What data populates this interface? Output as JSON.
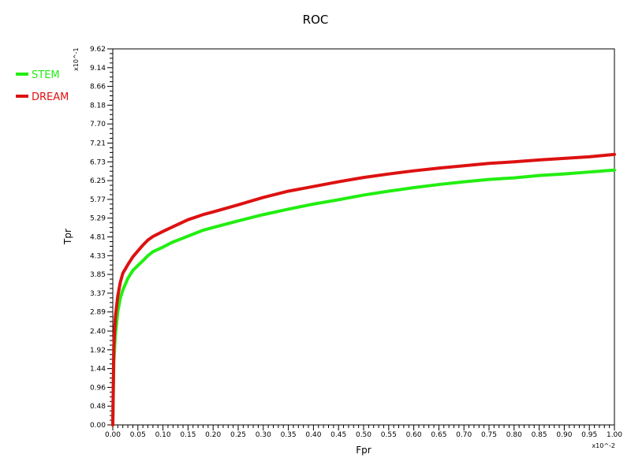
{
  "chart_data": {
    "type": "line",
    "title": "ROC",
    "xlabel": "Fpr",
    "ylabel": "Tpr",
    "x_multiplier_label": "x10^-2",
    "y_multiplier_label": "x10^-1",
    "xlim": [
      0,
      1
    ],
    "ylim": [
      0,
      9.62
    ],
    "x_ticks": [
      "0.00",
      "0.05",
      "0.10",
      "0.15",
      "0.20",
      "0.25",
      "0.30",
      "0.35",
      "0.40",
      "0.45",
      "0.50",
      "0.55",
      "0.60",
      "0.65",
      "0.70",
      "0.75",
      "0.80",
      "0.85",
      "0.90",
      "0.95",
      "1.00"
    ],
    "y_ticks": [
      "0.00",
      "0.48",
      "0.96",
      "1.44",
      "1.92",
      "2.40",
      "2.89",
      "3.37",
      "3.85",
      "4.33",
      "4.81",
      "5.29",
      "5.77",
      "6.25",
      "6.73",
      "7.21",
      "7.70",
      "8.18",
      "8.66",
      "9.14",
      "9.62"
    ],
    "grid": false,
    "legend_position": "left-outside",
    "series": [
      {
        "name": "STEM",
        "color": "#22ee11",
        "points": [
          [
            0.0,
            0.0
          ],
          [
            0.002,
            1.6
          ],
          [
            0.005,
            2.3
          ],
          [
            0.01,
            2.9
          ],
          [
            0.015,
            3.25
          ],
          [
            0.02,
            3.45
          ],
          [
            0.03,
            3.75
          ],
          [
            0.04,
            3.95
          ],
          [
            0.05,
            4.08
          ],
          [
            0.06,
            4.2
          ],
          [
            0.07,
            4.33
          ],
          [
            0.08,
            4.43
          ],
          [
            0.1,
            4.55
          ],
          [
            0.12,
            4.68
          ],
          [
            0.15,
            4.83
          ],
          [
            0.18,
            4.98
          ],
          [
            0.2,
            5.05
          ],
          [
            0.25,
            5.22
          ],
          [
            0.3,
            5.38
          ],
          [
            0.35,
            5.52
          ],
          [
            0.4,
            5.65
          ],
          [
            0.45,
            5.76
          ],
          [
            0.5,
            5.88
          ],
          [
            0.55,
            5.98
          ],
          [
            0.6,
            6.07
          ],
          [
            0.65,
            6.15
          ],
          [
            0.7,
            6.22
          ],
          [
            0.75,
            6.28
          ],
          [
            0.8,
            6.32
          ],
          [
            0.85,
            6.38
          ],
          [
            0.9,
            6.42
          ],
          [
            0.95,
            6.47
          ],
          [
            1.0,
            6.52
          ]
        ]
      },
      {
        "name": "DREAM",
        "color": "#dd1111",
        "points": [
          [
            0.0,
            0.0
          ],
          [
            0.002,
            2.0
          ],
          [
            0.005,
            2.75
          ],
          [
            0.01,
            3.3
          ],
          [
            0.015,
            3.65
          ],
          [
            0.02,
            3.88
          ],
          [
            0.03,
            4.1
          ],
          [
            0.04,
            4.3
          ],
          [
            0.05,
            4.45
          ],
          [
            0.06,
            4.6
          ],
          [
            0.07,
            4.73
          ],
          [
            0.08,
            4.82
          ],
          [
            0.1,
            4.95
          ],
          [
            0.12,
            5.07
          ],
          [
            0.15,
            5.25
          ],
          [
            0.18,
            5.38
          ],
          [
            0.2,
            5.45
          ],
          [
            0.25,
            5.63
          ],
          [
            0.3,
            5.82
          ],
          [
            0.35,
            5.98
          ],
          [
            0.4,
            6.1
          ],
          [
            0.45,
            6.22
          ],
          [
            0.5,
            6.33
          ],
          [
            0.55,
            6.42
          ],
          [
            0.6,
            6.5
          ],
          [
            0.65,
            6.57
          ],
          [
            0.7,
            6.63
          ],
          [
            0.75,
            6.69
          ],
          [
            0.8,
            6.73
          ],
          [
            0.85,
            6.78
          ],
          [
            0.9,
            6.82
          ],
          [
            0.95,
            6.86
          ],
          [
            1.0,
            6.92
          ]
        ]
      }
    ]
  }
}
